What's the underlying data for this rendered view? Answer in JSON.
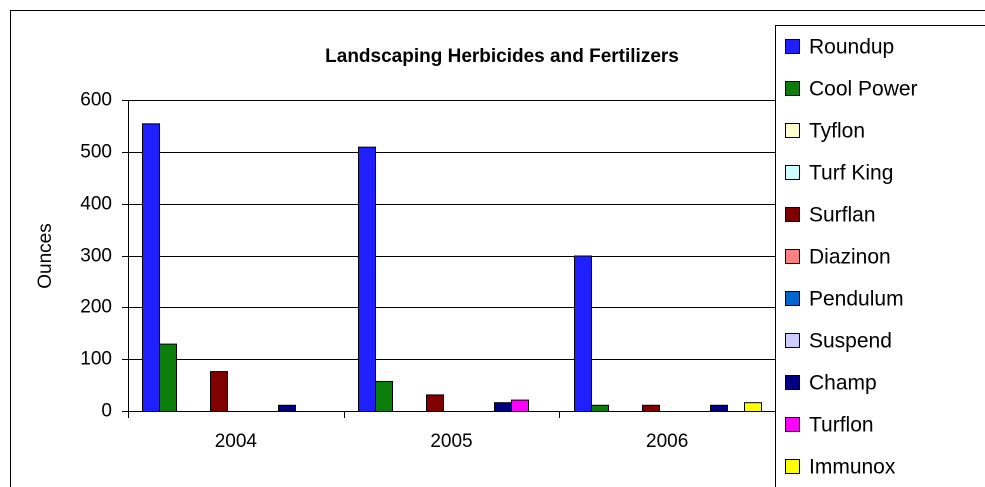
{
  "chart_data": {
    "type": "bar",
    "title": "Landscaping Herbicides and Fertilizers",
    "y_label": "Ounces",
    "categories": [
      "2004",
      "2005",
      "2006"
    ],
    "series": [
      {
        "name": "Roundup",
        "color": "#1f1fff",
        "values": [
          555,
          510,
          300
        ]
      },
      {
        "name": "Cool Power",
        "color": "#0a7d0a",
        "values": [
          130,
          58,
          12
        ]
      },
      {
        "name": "Tyflon",
        "color": "#ffffcc",
        "values": [
          0,
          0,
          0
        ]
      },
      {
        "name": "Turf King",
        "color": "#ccffff",
        "values": [
          0,
          0,
          0
        ]
      },
      {
        "name": "Surflan",
        "color": "#800000",
        "values": [
          77,
          32,
          12
        ]
      },
      {
        "name": "Diazinon",
        "color": "#ff8080",
        "values": [
          0,
          0,
          0
        ]
      },
      {
        "name": "Pendulum",
        "color": "#0066cc",
        "values": [
          0,
          0,
          0
        ]
      },
      {
        "name": "Suspend",
        "color": "#ccccff",
        "values": [
          0,
          0,
          0
        ]
      },
      {
        "name": "Champ",
        "color": "#000080",
        "values": [
          12,
          17,
          12
        ]
      },
      {
        "name": "Turflon",
        "color": "#ff00ff",
        "values": [
          0,
          22,
          0
        ]
      },
      {
        "name": "Immunox",
        "color": "#ffff00",
        "values": [
          0,
          0,
          17
        ]
      }
    ],
    "ylim": [
      0,
      600
    ],
    "yticks": [
      0,
      100,
      200,
      300,
      400,
      500,
      600
    ],
    "grid": true,
    "legend": "right"
  }
}
